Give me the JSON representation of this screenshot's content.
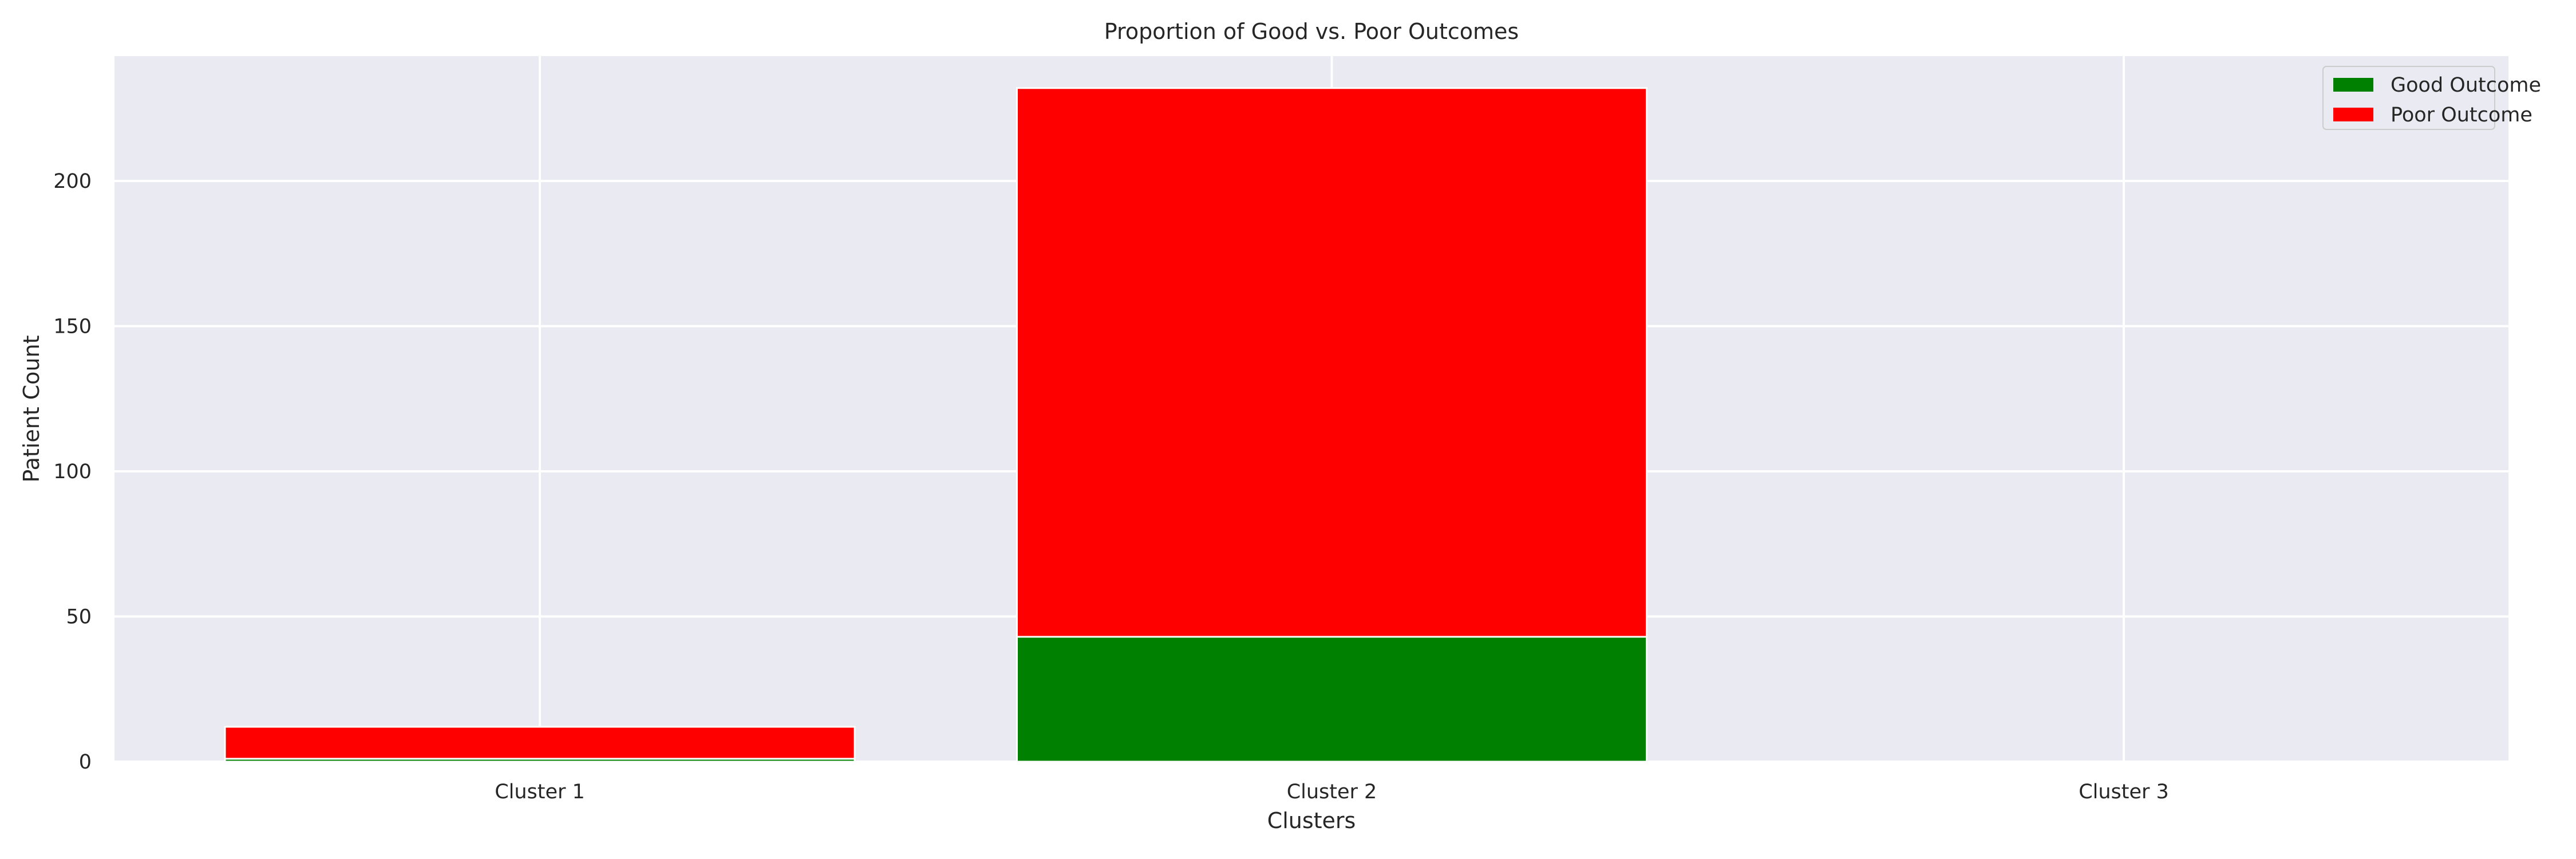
{
  "chart_data": {
    "type": "bar",
    "stacked": true,
    "title": "Proportion of Good vs. Poor Outcomes",
    "xlabel": "Clusters",
    "ylabel": "Patient Count",
    "categories": [
      "Cluster 1",
      "Cluster 2",
      "Cluster 3"
    ],
    "series": [
      {
        "name": "Good Outcome",
        "color": "#008000",
        "values": [
          1,
          43,
          0
        ]
      },
      {
        "name": "Poor Outcome",
        "color": "#ff0000",
        "values": [
          11,
          189,
          0
        ]
      }
    ],
    "ylim": [
      0,
      243
    ],
    "yticks": [
      0,
      50,
      100,
      150,
      200
    ],
    "grid": true,
    "legend_position": "top-right",
    "background_color": "#eaeaf2",
    "grid_color": "#ffffff"
  }
}
